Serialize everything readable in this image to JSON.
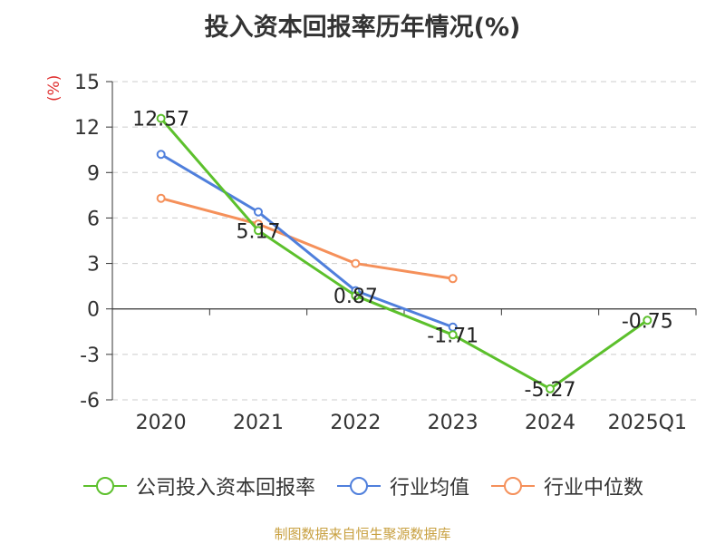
{
  "chart_data": {
    "type": "line",
    "title": "投入资本回报率历年情况(%)",
    "ylabel": "(%)",
    "categories": [
      "2020",
      "2021",
      "2022",
      "2023",
      "2024",
      "2025Q1"
    ],
    "ylim": [
      -6,
      15
    ],
    "yticks": [
      15,
      12,
      9,
      6,
      3,
      0,
      -3,
      -6
    ],
    "grid": true,
    "legend_position": "bottom",
    "series": [
      {
        "name": "公司投入资本回报率",
        "color": "#5cc02c",
        "values": [
          12.57,
          5.17,
          0.87,
          -1.71,
          -5.27,
          -0.75
        ],
        "labels": [
          "12.57",
          "5.17",
          "0.87",
          "-1.71",
          "-5.27",
          "-0.75"
        ]
      },
      {
        "name": "行业均值",
        "color": "#4f7fdc",
        "values": [
          10.2,
          6.4,
          1.2,
          -1.2,
          null,
          null
        ]
      },
      {
        "name": "行业中位数",
        "color": "#f5905a",
        "values": [
          7.3,
          5.6,
          3.0,
          2.0,
          null,
          null
        ]
      }
    ]
  },
  "source": "制图数据来自恒生聚源数据库"
}
